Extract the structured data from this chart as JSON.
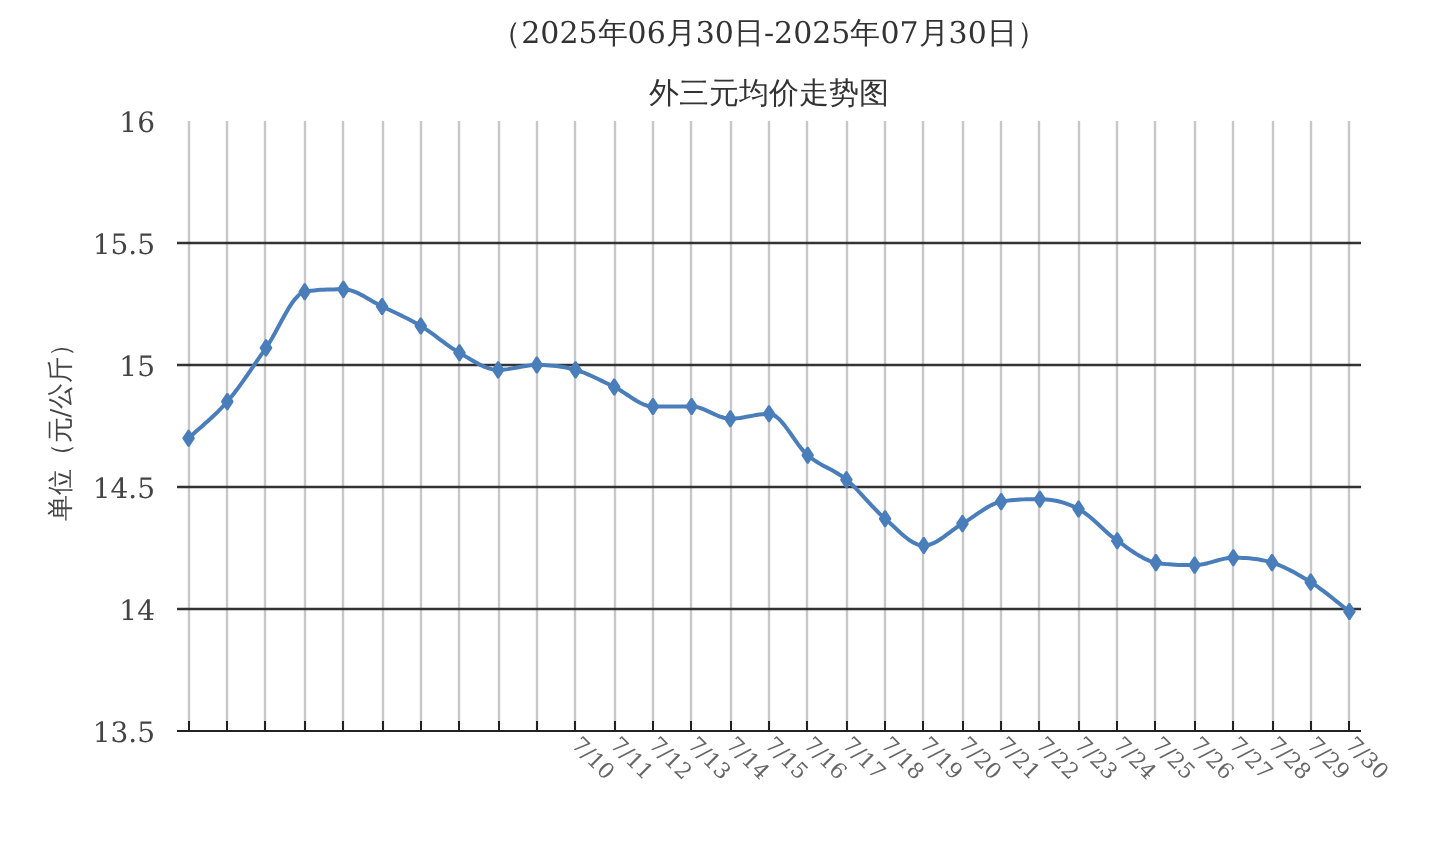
{
  "chart_data": {
    "type": "line",
    "title": "（2025年06月30日-2025年07月30日）",
    "subtitle": "外三元均价走势图",
    "ylabel": "单位（元/公斤）",
    "categories": [
      null,
      null,
      null,
      null,
      null,
      null,
      null,
      null,
      null,
      null,
      "7/10",
      "7/11",
      "7/12",
      "7/13",
      "7/14",
      "7/15",
      "7/16",
      "7/17",
      "7/18",
      "7/19",
      "7/20",
      "7/21",
      "7/22",
      "7/23",
      "7/24",
      "7/25",
      "7/26",
      "7/27",
      "7/28",
      "7/29",
      "7/30"
    ],
    "series": [
      {
        "color": "#4a7ebb",
        "values": [
          14.7,
          14.85,
          15.07,
          15.3,
          15.31,
          15.24,
          15.16,
          15.05,
          14.98,
          15.0,
          14.98,
          14.91,
          14.83,
          14.83,
          14.78,
          14.8,
          14.63,
          14.53,
          14.37,
          14.26,
          14.35,
          14.44,
          14.45,
          14.41,
          14.28,
          14.19,
          14.18,
          14.21,
          14.19,
          14.11,
          13.99
        ]
      }
    ],
    "ylim": [
      13.5,
      16
    ],
    "yticks": [
      13.5,
      14,
      14.5,
      15,
      15.5,
      16
    ],
    "grid": true,
    "marker": "diamond",
    "line_style": "solid"
  }
}
